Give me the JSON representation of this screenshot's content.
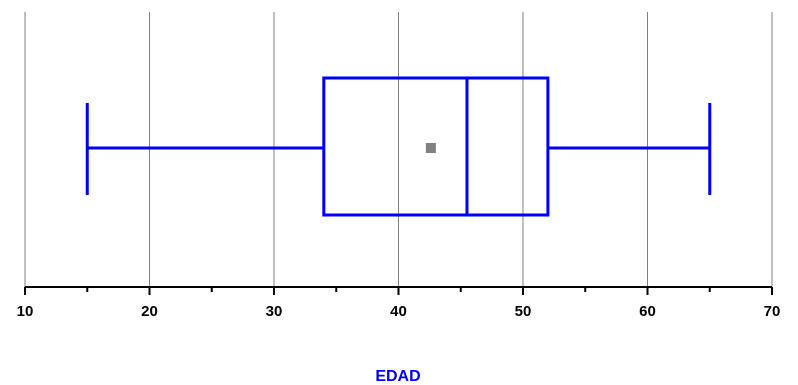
{
  "chart_data": {
    "type": "boxplot",
    "xlabel": "EDAD",
    "xlim": [
      10,
      70
    ],
    "x_ticks": [
      10,
      20,
      30,
      40,
      50,
      60,
      70
    ],
    "tick_labels": [
      "10",
      "20",
      "30",
      "40",
      "50",
      "60",
      "70"
    ],
    "grid": true,
    "orientation": "horizontal",
    "box": {
      "min": 15,
      "q1": 34,
      "median": 45.5,
      "q3": 52,
      "max": 65,
      "mean": 42.6
    },
    "colors": {
      "box": "#0000ff",
      "mean_marker": "#808080",
      "grid": "#808080",
      "axis": "#000000",
      "title": "#0000ff"
    }
  }
}
